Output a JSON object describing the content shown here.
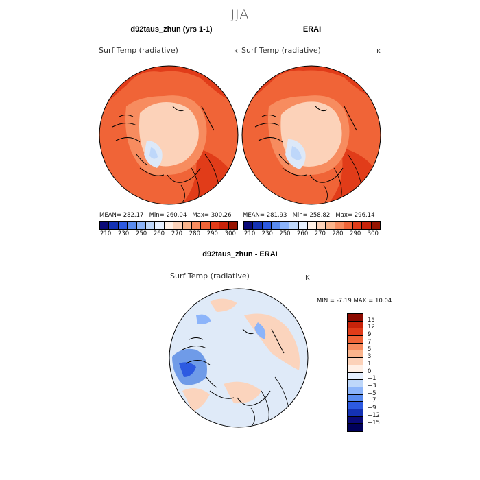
{
  "season": "JJA",
  "panels": [
    {
      "title": "d92taus_zhun (yrs 1-1)",
      "variable": "Surf Temp (radiative)",
      "units": "K",
      "mean_label": "MEAN=",
      "mean": "282.17",
      "min_label": "Min=",
      "min": "260.04",
      "max_label": "Max=",
      "max": "300.26"
    },
    {
      "title": "ERAI",
      "variable": "Surf Temp (radiative)",
      "units": "K",
      "mean_label": "MEAN=",
      "mean": "281.93",
      "min_label": "Min=",
      "min": "258.82",
      "max_label": "Max=",
      "max": "296.14"
    }
  ],
  "abs_colorbar": {
    "ticks": [
      "210",
      "230",
      "250",
      "260",
      "270",
      "280",
      "290",
      "300"
    ],
    "colors": [
      "#0a0a78",
      "#1432b4",
      "#2d5ae1",
      "#5a8cf0",
      "#8cb4fa",
      "#bed7fa",
      "#e6f0ff",
      "#fff0e6",
      "#fcd2b9",
      "#fab48c",
      "#f78c5f",
      "#f06437",
      "#e13c19",
      "#c8230a",
      "#961400"
    ]
  },
  "diff_panel": {
    "title": "d92taus_zhun - ERAI",
    "variable": "Surf Temp (radiative)",
    "units": "K",
    "min_label": "MIN =",
    "min": "-7.19",
    "max_label": "MAX =",
    "max": "10.04"
  },
  "diff_colorbar": {
    "labels": [
      "15",
      "12",
      "9",
      "7",
      "5",
      "3",
      "1",
      "0",
      "−1",
      "−3",
      "−5",
      "−7",
      "−9",
      "−12",
      "−15"
    ],
    "colors": [
      "#8c0a00",
      "#c8230a",
      "#e13c19",
      "#f06437",
      "#f78c5f",
      "#fab48c",
      "#fcd2b9",
      "#fff0e6",
      "#e6f0ff",
      "#bed7fa",
      "#8cb4fa",
      "#5a8cf0",
      "#2d5ae1",
      "#1432b4",
      "#0a0a78",
      "#00005a"
    ]
  },
  "colors": {
    "ocean_warm": "#f06437",
    "ocean_warmer": "#e13c19",
    "arctic_cool": "#fcd2b9",
    "greenland": "#dce8f8",
    "diff_base": "#dfeaf8",
    "diff_warm": "#fbd4bd",
    "diff_cool": "#6f9be8"
  }
}
